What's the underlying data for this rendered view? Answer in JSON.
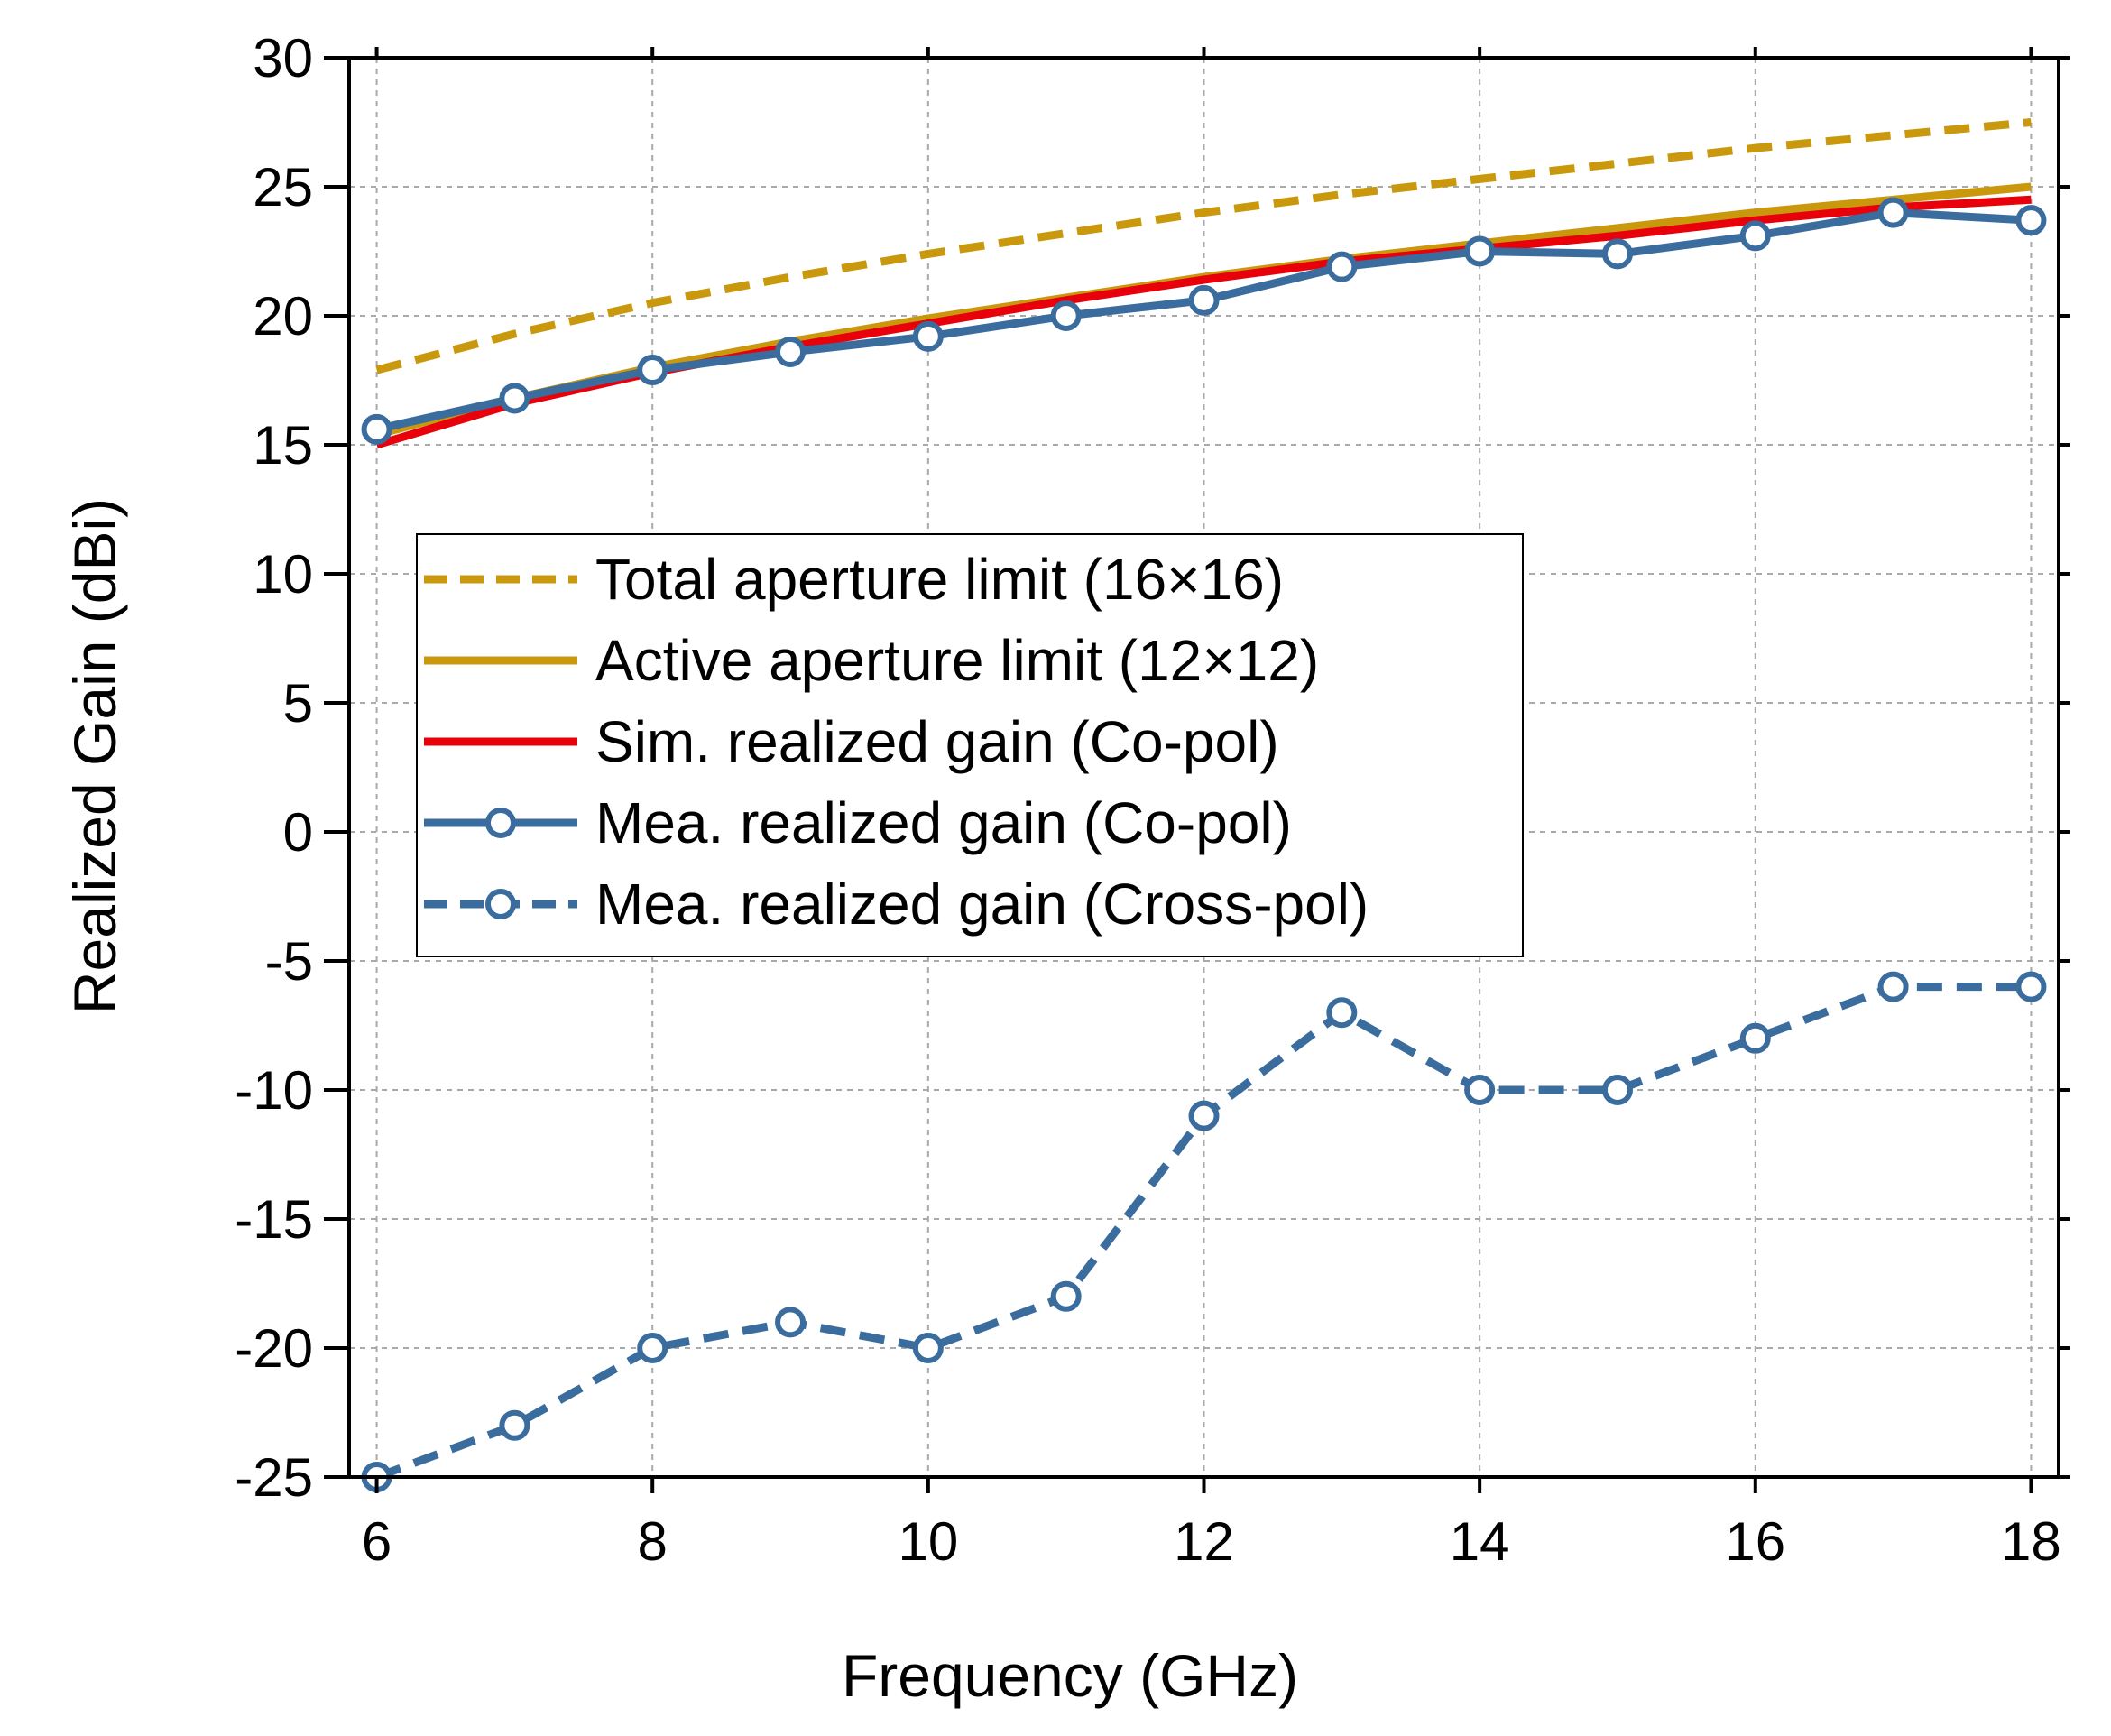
{
  "chart_data": {
    "type": "line",
    "xlabel": "Frequency (GHz)",
    "ylabel": "Realized Gain (dBi)",
    "xlim": [
      5.8,
      18.2
    ],
    "ylim": [
      -25,
      30
    ],
    "xticks": [
      6,
      8,
      10,
      12,
      14,
      16,
      18
    ],
    "yticks": [
      -25,
      -20,
      -15,
      -10,
      -5,
      0,
      5,
      10,
      15,
      20,
      25,
      30
    ],
    "grid": true,
    "legend_position": "center-left",
    "series": [
      {
        "name": "Total aperture limit (16×16)",
        "color": "#c9980c",
        "style": "dashed",
        "marker": "none",
        "x": [
          6,
          7,
          8,
          9,
          10,
          11,
          12,
          13,
          14,
          15,
          16,
          17,
          18
        ],
        "y": [
          17.9,
          19.3,
          20.5,
          21.5,
          22.4,
          23.2,
          24.0,
          24.7,
          25.3,
          25.9,
          26.5,
          27.0,
          27.5
        ]
      },
      {
        "name": "Active aperture limit (12×12)",
        "color": "#c9980c",
        "style": "solid",
        "marker": "none",
        "x": [
          6,
          7,
          8,
          9,
          10,
          11,
          12,
          13,
          14,
          15,
          16,
          17,
          18
        ],
        "y": [
          15.4,
          16.8,
          18.0,
          19.0,
          19.9,
          20.7,
          21.5,
          22.2,
          22.8,
          23.4,
          24.0,
          24.5,
          25.0
        ]
      },
      {
        "name": "Sim. realized gain (Co-pol)",
        "color": "#e8000b",
        "style": "solid",
        "marker": "none",
        "x": [
          6,
          7,
          8,
          9,
          10,
          11,
          12,
          13,
          14,
          15,
          16,
          17,
          18
        ],
        "y": [
          15.0,
          16.6,
          17.8,
          18.8,
          19.7,
          20.6,
          21.4,
          22.1,
          22.6,
          23.1,
          23.7,
          24.2,
          24.5
        ]
      },
      {
        "name": "Mea. realized gain (Co-pol)",
        "color": "#3b6c9e",
        "style": "solid",
        "marker": "circle",
        "x": [
          6,
          7,
          8,
          9,
          10,
          11,
          12,
          13,
          14,
          15,
          16,
          17,
          18
        ],
        "y": [
          15.6,
          16.8,
          17.9,
          18.6,
          19.2,
          20.0,
          20.6,
          21.9,
          22.5,
          22.4,
          23.1,
          24.0,
          23.7
        ]
      },
      {
        "name": "Mea. realized gain (Cross-pol)",
        "color": "#3b6c9e",
        "style": "dashed",
        "marker": "circle",
        "x": [
          6,
          7,
          8,
          9,
          10,
          11,
          12,
          13,
          14,
          15,
          16,
          17,
          18
        ],
        "y": [
          -25,
          -23,
          -20,
          -19,
          -20,
          -18,
          -11,
          -7,
          -10,
          -10,
          -8,
          -6,
          -6
        ]
      }
    ]
  }
}
